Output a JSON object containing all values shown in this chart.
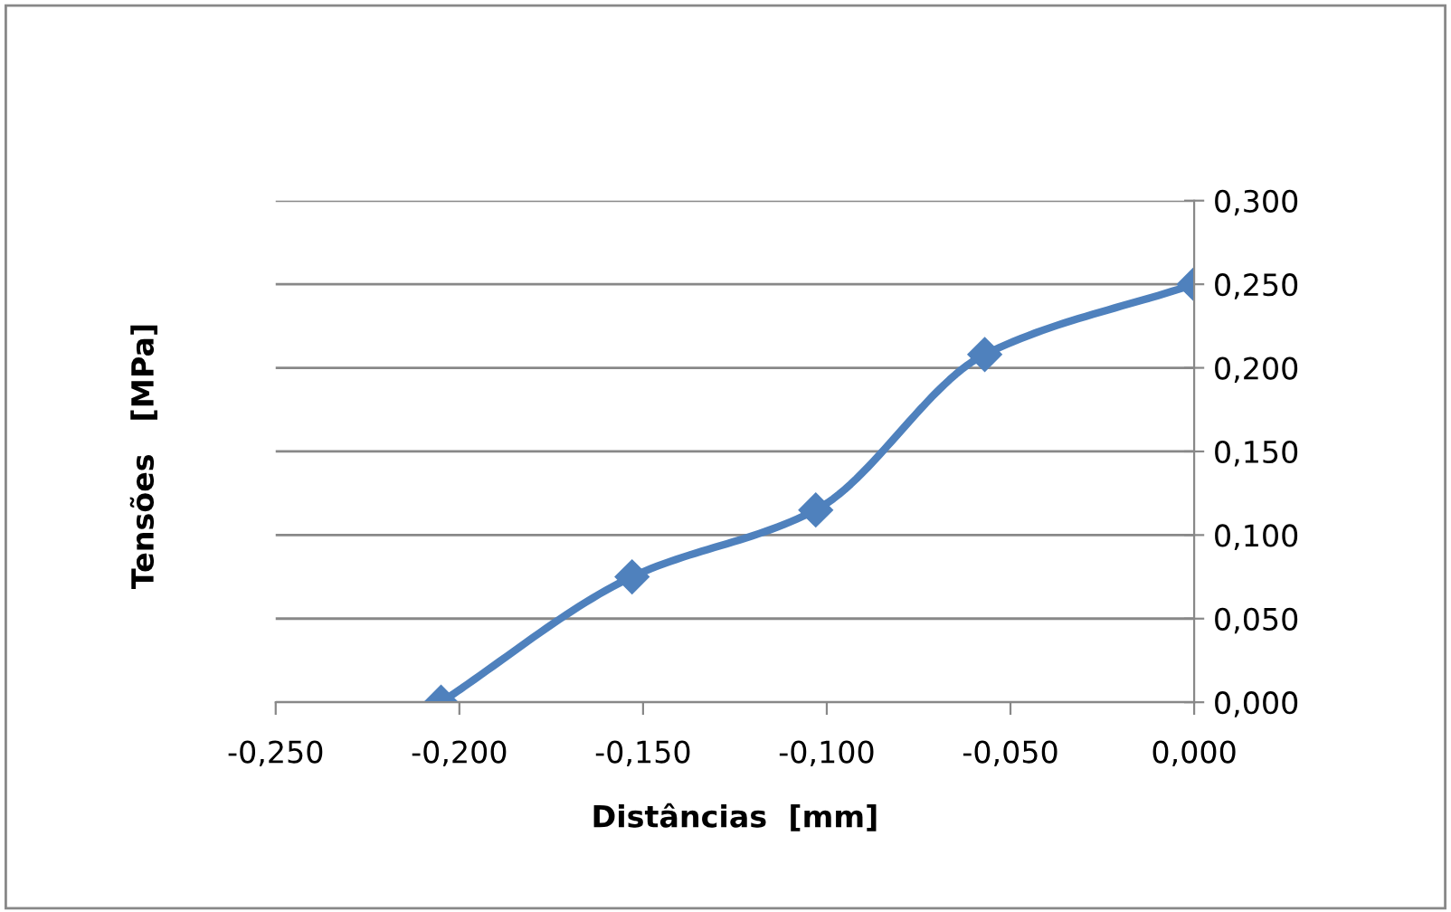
{
  "chart_data": {
    "type": "line",
    "xlabel": "Distâncias  [mm]",
    "ylabel": "Tensões   [MPa]",
    "x": [
      -0.205,
      -0.153,
      -0.103,
      -0.057,
      0.0
    ],
    "series": [
      {
        "color": "#4f81bd",
        "values": [
          0.0,
          0.075,
          0.115,
          0.208,
          0.25
        ]
      }
    ],
    "marker": "diamond",
    "line_style": "solid",
    "grid": "y",
    "xlim": [
      -0.25,
      0.0
    ],
    "ylim": [
      0.0,
      0.3
    ],
    "xticks": [
      {
        "value": -0.25,
        "label": "-0,250"
      },
      {
        "value": -0.2,
        "label": "-0,200"
      },
      {
        "value": -0.15,
        "label": "-0,150"
      },
      {
        "value": -0.1,
        "label": "-0,100"
      },
      {
        "value": -0.05,
        "label": "-0,050"
      },
      {
        "value": 0.0,
        "label": "0,000"
      }
    ],
    "yticks": [
      {
        "value": 0.0,
        "label": "0,000"
      },
      {
        "value": 0.05,
        "label": "0,050"
      },
      {
        "value": 0.1,
        "label": "0,100"
      },
      {
        "value": 0.15,
        "label": "0,150"
      },
      {
        "value": 0.2,
        "label": "0,200"
      },
      {
        "value": 0.25,
        "label": "0,250"
      },
      {
        "value": 0.3,
        "label": "0,300"
      }
    ]
  }
}
